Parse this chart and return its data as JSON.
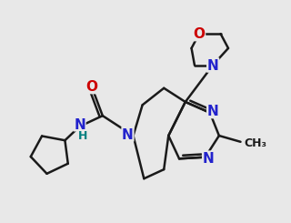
{
  "bg_color": "#e8e8e8",
  "bond_color": "#1a1a1a",
  "n_color": "#2222cc",
  "o_color": "#cc0000",
  "h_color": "#008080",
  "line_width": 1.8,
  "font_size": 10
}
